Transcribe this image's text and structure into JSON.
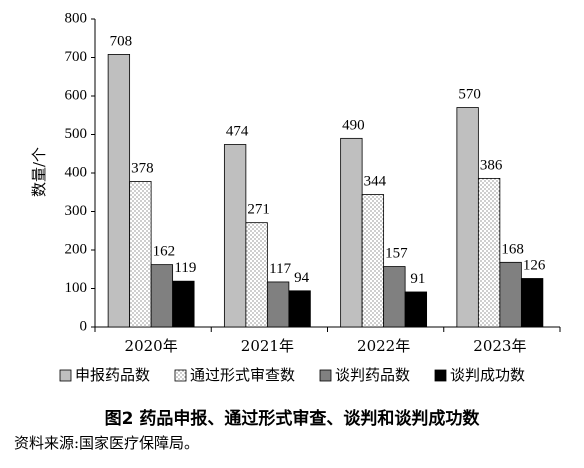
{
  "chart_data": {
    "type": "bar",
    "categories": [
      "2020年",
      "2021年",
      "2022年",
      "2023年"
    ],
    "series": [
      {
        "name": "申报药品数",
        "values": [
          708,
          474,
          490,
          570
        ],
        "fill": "#bfbfbf",
        "pattern": "solid"
      },
      {
        "name": "通过形式审查数",
        "values": [
          378,
          271,
          344,
          386
        ],
        "fill": "#ffffff",
        "pattern": "dots"
      },
      {
        "name": "谈判药品数",
        "values": [
          162,
          117,
          157,
          168
        ],
        "fill": "#808080",
        "pattern": "solid"
      },
      {
        "name": "谈判成功数",
        "values": [
          119,
          94,
          91,
          126
        ],
        "fill": "#000000",
        "pattern": "solid"
      }
    ],
    "ylabel": "数量/个",
    "ylim": [
      0,
      800
    ],
    "yticks": [
      "0",
      "100",
      "200",
      "300",
      "400",
      "500",
      "600",
      "700",
      "800"
    ],
    "grid": false,
    "legend_position": "bottom"
  },
  "caption": "图2  药品申报、通过形式审查、谈判和谈判成功数",
  "source": "资料来源:国家医疗保障局。"
}
